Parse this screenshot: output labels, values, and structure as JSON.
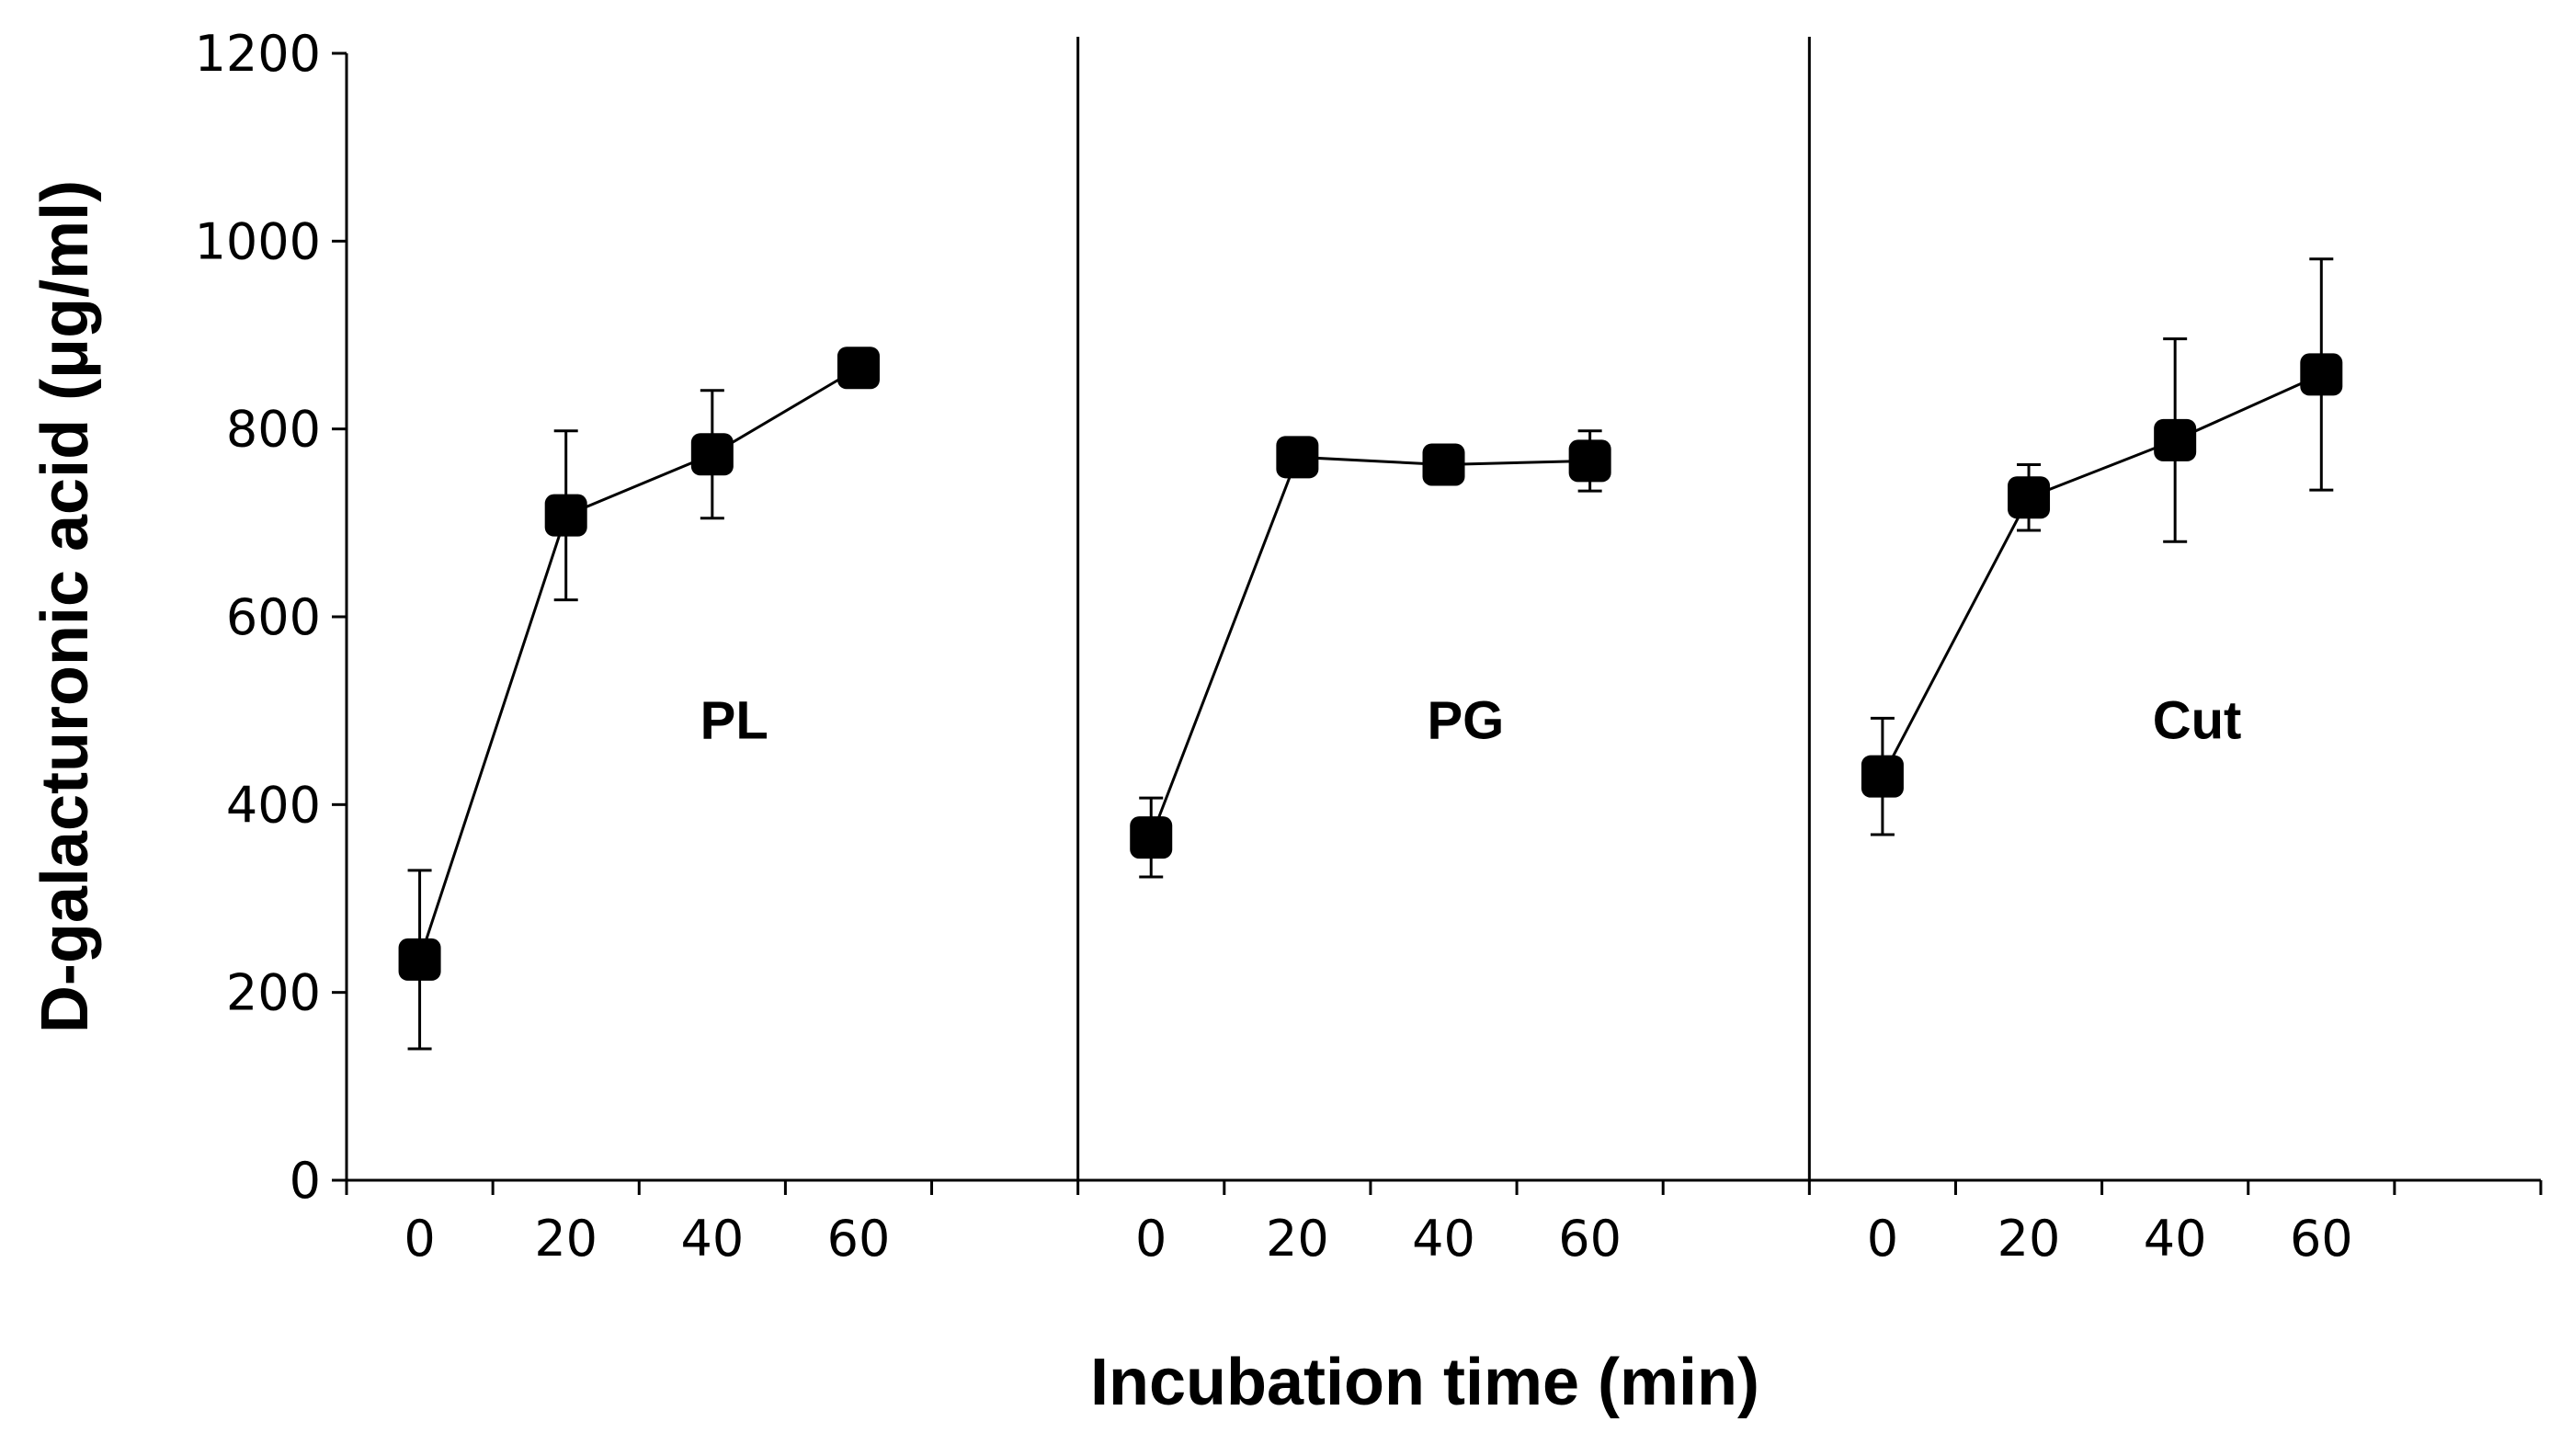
{
  "chart_data": {
    "type": "line",
    "title": "",
    "xlabel": "Incubation time (min)",
    "ylabel": "D-galacturonic acid (μg/ml)",
    "ylim": [
      0,
      1200
    ],
    "yticks": [
      0,
      200,
      400,
      600,
      800,
      1000,
      1200
    ],
    "x": [
      0,
      20,
      40,
      60
    ],
    "xtick_labels": [
      "0",
      "20",
      "40",
      "60"
    ],
    "series": [
      {
        "name": "PL",
        "values": [
          235,
          708,
          773,
          865
        ],
        "errors": [
          95,
          90,
          68,
          8
        ]
      },
      {
        "name": "PG",
        "values": [
          365,
          770,
          762,
          766
        ],
        "errors": [
          42,
          8,
          8,
          32
        ]
      },
      {
        "name": "Cut",
        "values": [
          430,
          727,
          788,
          858
        ],
        "errors": [
          62,
          35,
          108,
          123
        ]
      }
    ],
    "marker": "square",
    "error_bars": true
  }
}
